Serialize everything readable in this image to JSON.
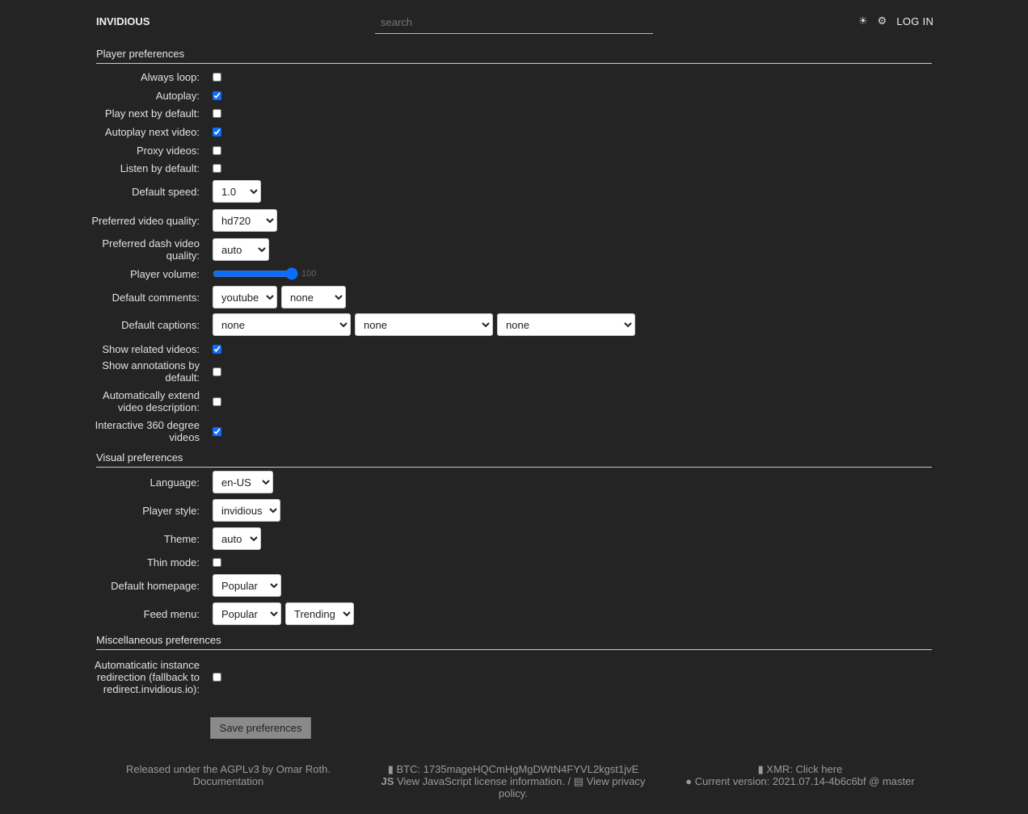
{
  "header": {
    "brand": "INVIDIOUS",
    "search_placeholder": "search",
    "theme_icon": "☀",
    "settings_icon": "⚙",
    "login": "LOG IN"
  },
  "player": {
    "title": "Player preferences",
    "always_loop": {
      "label": "Always loop:",
      "checked": false
    },
    "autoplay": {
      "label": "Autoplay:",
      "checked": true
    },
    "play_next": {
      "label": "Play next by default:",
      "checked": false
    },
    "autoplay_next": {
      "label": "Autoplay next video:",
      "checked": true
    },
    "proxy": {
      "label": "Proxy videos:",
      "checked": false
    },
    "listen": {
      "label": "Listen by default:",
      "checked": false
    },
    "speed": {
      "label": "Default speed:",
      "value": "1.0"
    },
    "quality": {
      "label": "Preferred video quality:",
      "value": "hd720"
    },
    "dash_quality": {
      "label": "Preferred dash video quality:",
      "value": "auto"
    },
    "volume": {
      "label": "Player volume:",
      "value": 100,
      "display": "100"
    },
    "comments": {
      "label": "Default comments:",
      "values": [
        "youtube",
        "none"
      ]
    },
    "captions": {
      "label": "Default captions:",
      "values": [
        "none",
        "none",
        "none"
      ]
    },
    "related": {
      "label": "Show related videos:",
      "checked": true
    },
    "annotations": {
      "label": "Show annotations by default:",
      "checked": false
    },
    "extend_desc": {
      "label": "Automatically extend video description:",
      "checked": false
    },
    "vr360": {
      "label": "Interactive 360 degree videos",
      "checked": true
    }
  },
  "visual": {
    "title": "Visual preferences",
    "language": {
      "label": "Language:",
      "value": "en-US"
    },
    "player_style": {
      "label": "Player style:",
      "value": "invidious"
    },
    "theme": {
      "label": "Theme:",
      "value": "auto"
    },
    "thin_mode": {
      "label": "Thin mode:",
      "checked": false
    },
    "homepage": {
      "label": "Default homepage:",
      "value": "Popular"
    },
    "feed_menu": {
      "label": "Feed menu:",
      "values": [
        "Popular",
        "Trending"
      ]
    }
  },
  "misc": {
    "title": "Miscellaneous preferences",
    "redirect": {
      "label": "Automaticatic instance redirection (fallback to redirect.invidious.io):",
      "checked": false
    }
  },
  "save_label": "Save preferences",
  "footer": {
    "released": "Released under the AGPLv3 by Omar Roth.",
    "documentation": "Documentation",
    "btc": "BTC: 1735mageHQCmHgMgDWtN4FYVL2kgst1jvE",
    "js_license": "View JavaScript license information.",
    "separator": " / ",
    "privacy": "View privacy policy.",
    "xmr": "XMR: Click here",
    "version": "Current version: 2021.07.14-4b6c6bf @ master"
  },
  "colors": {
    "background": "#242424",
    "accent": "#0b6cff"
  }
}
